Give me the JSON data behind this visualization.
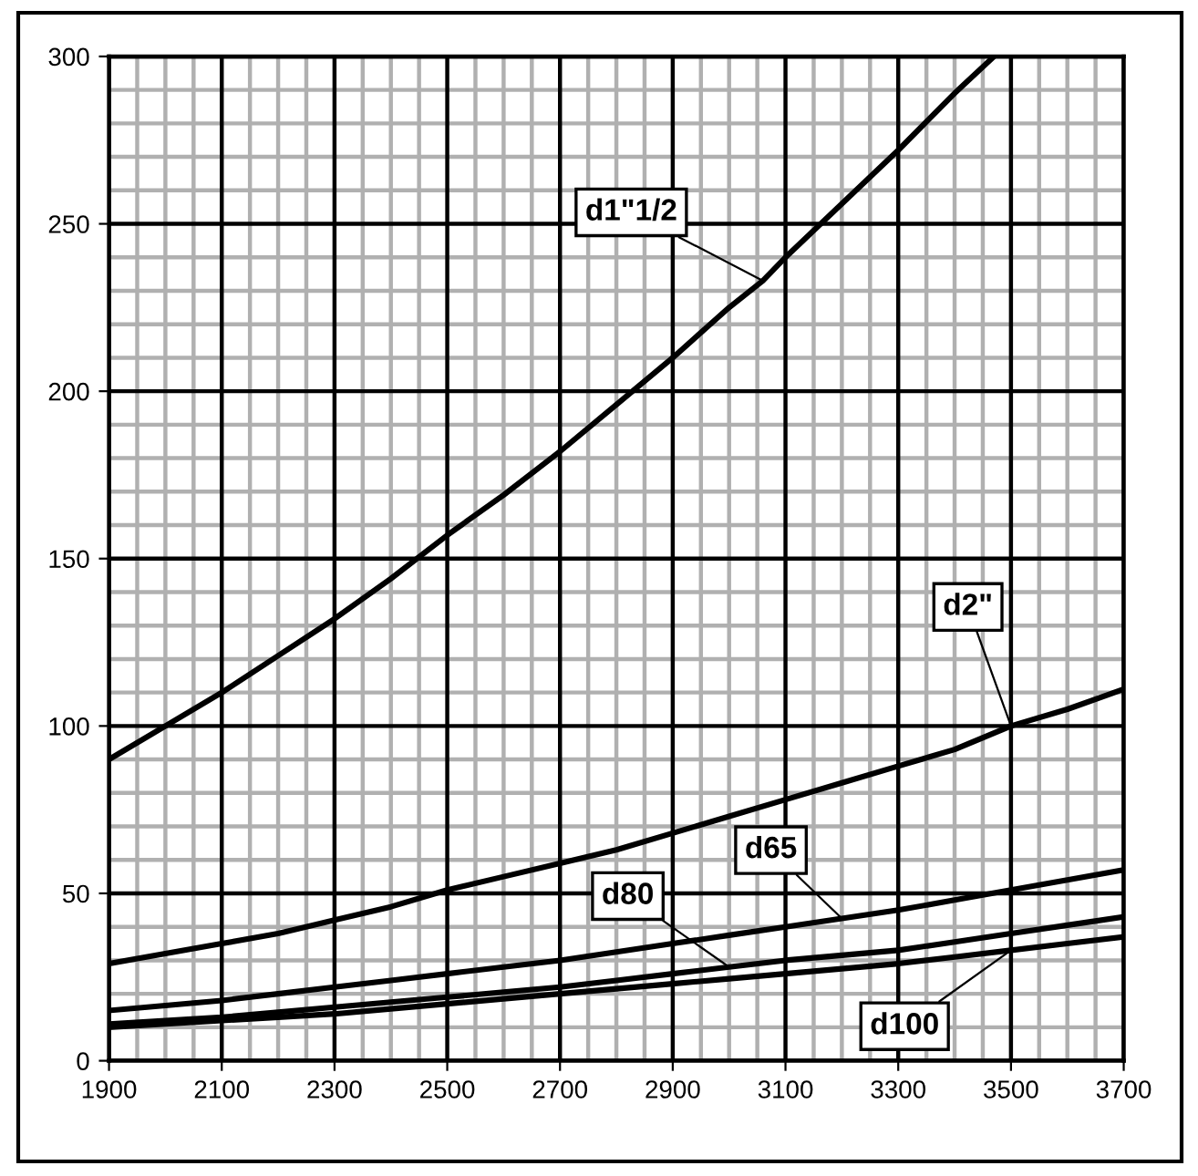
{
  "chart_data": {
    "type": "line",
    "x": [
      1900,
      2000,
      2100,
      2200,
      2300,
      2400,
      2500,
      2600,
      2700,
      2800,
      2900,
      3000,
      3100,
      3200,
      3300,
      3400,
      3500,
      3600,
      3700
    ],
    "series": [
      {
        "name": "d1\"1/2",
        "color": "#000000",
        "x": [
          1900,
          2000,
          2100,
          2200,
          2300,
          2400,
          2500,
          2600,
          2700,
          2800,
          2900,
          3000,
          3060,
          3100,
          3200,
          3300,
          3400,
          3470
        ],
        "values": [
          90,
          100,
          110,
          121,
          132,
          144,
          157,
          169,
          182,
          196,
          210,
          225,
          233,
          240,
          256,
          272,
          289,
          300
        ]
      },
      {
        "name": "d2\"",
        "color": "#000000",
        "values": [
          29,
          32,
          35,
          38,
          42,
          46,
          51,
          55,
          59,
          63,
          68,
          73,
          78,
          83,
          88,
          93,
          100,
          105,
          111
        ]
      },
      {
        "name": "d65",
        "color": "#000000",
        "values": [
          15,
          16.5,
          18,
          20,
          22,
          24,
          26,
          28,
          30,
          32.5,
          35,
          37.5,
          40,
          42.5,
          45,
          48,
          51,
          54,
          57
        ]
      },
      {
        "name": "d80",
        "color": "#000000",
        "values": [
          11,
          12,
          13,
          14.5,
          16,
          17.5,
          19,
          20.5,
          22,
          24,
          26,
          28,
          30,
          31.5,
          33,
          35.5,
          38,
          40.5,
          43
        ]
      },
      {
        "name": "d100",
        "color": "#000000",
        "values": [
          10,
          11,
          12,
          13,
          14,
          15.5,
          17,
          18.5,
          20,
          21.5,
          23,
          24.5,
          26,
          27.5,
          29,
          31,
          33,
          35,
          37
        ]
      }
    ],
    "xlim": [
      1900,
      3700
    ],
    "xticks": [
      1900,
      2100,
      2300,
      2500,
      2700,
      2900,
      3100,
      3300,
      3500,
      3700
    ],
    "ylim": [
      0,
      300
    ],
    "yticks": [
      0,
      50,
      100,
      150,
      200,
      250,
      300
    ],
    "grid": true,
    "legend": false,
    "marker": "none",
    "line_style": "solid"
  }
}
